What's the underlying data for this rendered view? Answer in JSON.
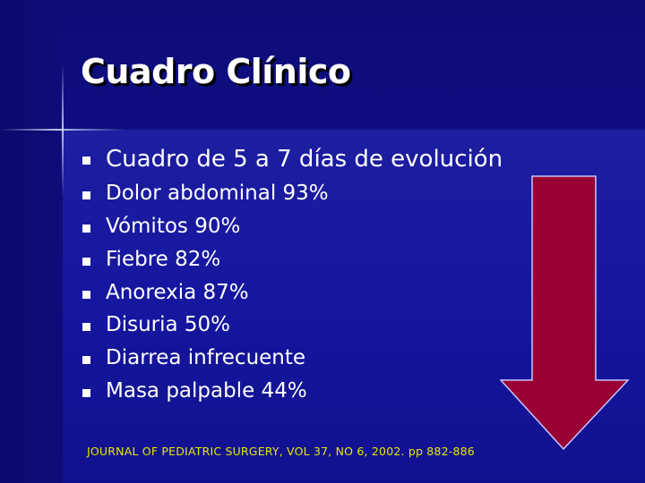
{
  "slide": {
    "title": "Cuadro Clínico",
    "bullets": [
      "Cuadro de 5 a 7 días de evolución",
      "Dolor abdominal  93%",
      "Vómitos  90%",
      "Fiebre  82%",
      "Anorexia  87%",
      "Disuria  50%",
      "Diarrea  infrecuente",
      "Masa palpable 44%"
    ],
    "citation": "JOURNAL OF PEDIATRIC SURGERY, VOL 37, NO 6, 2002. pp 882-886"
  },
  "colors": {
    "background": "#0d0d7a",
    "title_text": "#ffffff",
    "body_text": "#ffffff",
    "citation_text": "#e8e800",
    "arrow_fill": "#990033",
    "arrow_stroke": "#c8c8ff"
  },
  "icons": {
    "bullet": "square-bullet-icon",
    "arrow": "down-arrow-icon"
  }
}
